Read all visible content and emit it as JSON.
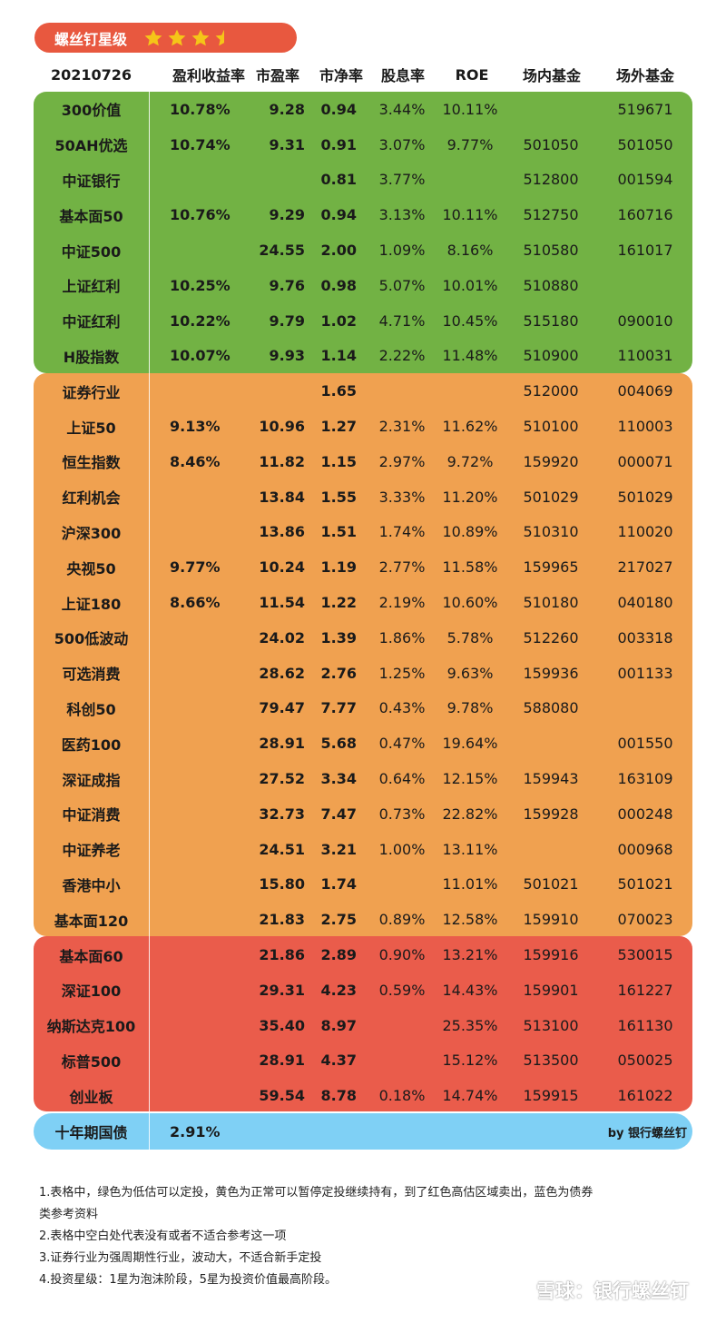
{
  "badge": {
    "title": "螺丝钉星级",
    "star_rating": 3.5,
    "star_color": "#f5c518"
  },
  "header": {
    "date": "20210726",
    "columns": [
      "盈利收益率",
      "市盈率",
      "市净率",
      "股息率",
      "ROE",
      "场内基金",
      "场外基金"
    ]
  },
  "colors": {
    "green": "#72b244",
    "orange": "#f0a150",
    "red": "#ea5c4b",
    "blue": "#7fd0f5",
    "badge": "#e8583f"
  },
  "groups": {
    "green": [
      {
        "name": "300价值",
        "ey": "10.78%",
        "pe": "9.28",
        "pb": "0.94",
        "dy": "3.44%",
        "roe": "10.11%",
        "inside": "",
        "outside": "519671"
      },
      {
        "name": "50AH优选",
        "ey": "10.74%",
        "pe": "9.31",
        "pb": "0.91",
        "dy": "3.07%",
        "roe": "9.77%",
        "inside": "501050",
        "outside": "501050"
      },
      {
        "name": "中证银行",
        "ey": "",
        "pe": "",
        "pb": "0.81",
        "dy": "3.77%",
        "roe": "",
        "inside": "512800",
        "outside": "001594"
      },
      {
        "name": "基本面50",
        "ey": "10.76%",
        "pe": "9.29",
        "pb": "0.94",
        "dy": "3.13%",
        "roe": "10.11%",
        "inside": "512750",
        "outside": "160716"
      },
      {
        "name": "中证500",
        "ey": "",
        "pe": "24.55",
        "pb": "2.00",
        "dy": "1.09%",
        "roe": "8.16%",
        "inside": "510580",
        "outside": "161017"
      },
      {
        "name": "上证红利",
        "ey": "10.25%",
        "pe": "9.76",
        "pb": "0.98",
        "dy": "5.07%",
        "roe": "10.01%",
        "inside": "510880",
        "outside": ""
      },
      {
        "name": "中证红利",
        "ey": "10.22%",
        "pe": "9.79",
        "pb": "1.02",
        "dy": "4.71%",
        "roe": "10.45%",
        "inside": "515180",
        "outside": "090010"
      },
      {
        "name": "H股指数",
        "ey": "10.07%",
        "pe": "9.93",
        "pb": "1.14",
        "dy": "2.22%",
        "roe": "11.48%",
        "inside": "510900",
        "outside": "110031"
      }
    ],
    "orange": [
      {
        "name": "证券行业",
        "ey": "",
        "pe": "",
        "pb": "1.65",
        "dy": "",
        "roe": "",
        "inside": "512000",
        "outside": "004069"
      },
      {
        "name": "上证50",
        "ey": "9.13%",
        "pe": "10.96",
        "pb": "1.27",
        "dy": "2.31%",
        "roe": "11.62%",
        "inside": "510100",
        "outside": "110003"
      },
      {
        "name": "恒生指数",
        "ey": "8.46%",
        "pe": "11.82",
        "pb": "1.15",
        "dy": "2.97%",
        "roe": "9.72%",
        "inside": "159920",
        "outside": "000071"
      },
      {
        "name": "红利机会",
        "ey": "",
        "pe": "13.84",
        "pb": "1.55",
        "dy": "3.33%",
        "roe": "11.20%",
        "inside": "501029",
        "outside": "501029"
      },
      {
        "name": "沪深300",
        "ey": "",
        "pe": "13.86",
        "pb": "1.51",
        "dy": "1.74%",
        "roe": "10.89%",
        "inside": "510310",
        "outside": "110020"
      },
      {
        "name": "央视50",
        "ey": "9.77%",
        "pe": "10.24",
        "pb": "1.19",
        "dy": "2.77%",
        "roe": "11.58%",
        "inside": "159965",
        "outside": "217027"
      },
      {
        "name": "上证180",
        "ey": "8.66%",
        "pe": "11.54",
        "pb": "1.22",
        "dy": "2.19%",
        "roe": "10.60%",
        "inside": "510180",
        "outside": "040180"
      },
      {
        "name": "500低波动",
        "ey": "",
        "pe": "24.02",
        "pb": "1.39",
        "dy": "1.86%",
        "roe": "5.78%",
        "inside": "512260",
        "outside": "003318"
      },
      {
        "name": "可选消费",
        "ey": "",
        "pe": "28.62",
        "pb": "2.76",
        "dy": "1.25%",
        "roe": "9.63%",
        "inside": "159936",
        "outside": "001133"
      },
      {
        "name": "科创50",
        "ey": "",
        "pe": "79.47",
        "pb": "7.77",
        "dy": "0.43%",
        "roe": "9.78%",
        "inside": "588080",
        "outside": ""
      },
      {
        "name": "医药100",
        "ey": "",
        "pe": "28.91",
        "pb": "5.68",
        "dy": "0.47%",
        "roe": "19.64%",
        "inside": "",
        "outside": "001550"
      },
      {
        "name": "深证成指",
        "ey": "",
        "pe": "27.52",
        "pb": "3.34",
        "dy": "0.64%",
        "roe": "12.15%",
        "inside": "159943",
        "outside": "163109"
      },
      {
        "name": "中证消费",
        "ey": "",
        "pe": "32.73",
        "pb": "7.47",
        "dy": "0.73%",
        "roe": "22.82%",
        "inside": "159928",
        "outside": "000248"
      },
      {
        "name": "中证养老",
        "ey": "",
        "pe": "24.51",
        "pb": "3.21",
        "dy": "1.00%",
        "roe": "13.11%",
        "inside": "",
        "outside": "000968"
      },
      {
        "name": "香港中小",
        "ey": "",
        "pe": "15.80",
        "pb": "1.74",
        "dy": "",
        "roe": "11.01%",
        "inside": "501021",
        "outside": "501021"
      },
      {
        "name": "基本面120",
        "ey": "",
        "pe": "21.83",
        "pb": "2.75",
        "dy": "0.89%",
        "roe": "12.58%",
        "inside": "159910",
        "outside": "070023"
      }
    ],
    "red": [
      {
        "name": "基本面60",
        "ey": "",
        "pe": "21.86",
        "pb": "2.89",
        "dy": "0.90%",
        "roe": "13.21%",
        "inside": "159916",
        "outside": "530015"
      },
      {
        "name": "深证100",
        "ey": "",
        "pe": "29.31",
        "pb": "4.23",
        "dy": "0.59%",
        "roe": "14.43%",
        "inside": "159901",
        "outside": "161227"
      },
      {
        "name": "纳斯达克100",
        "ey": "",
        "pe": "35.40",
        "pb": "8.97",
        "dy": "",
        "roe": "25.35%",
        "inside": "513100",
        "outside": "161130"
      },
      {
        "name": "标普500",
        "ey": "",
        "pe": "28.91",
        "pb": "4.37",
        "dy": "",
        "roe": "15.12%",
        "inside": "513500",
        "outside": "050025"
      },
      {
        "name": "创业板",
        "ey": "",
        "pe": "59.54",
        "pb": "8.78",
        "dy": "0.18%",
        "roe": "14.74%",
        "inside": "159915",
        "outside": "161022"
      }
    ]
  },
  "bond": {
    "name": "十年期国债",
    "ey": "2.91%",
    "by": "by 银行螺丝钉"
  },
  "notes": [
    "1.表格中，绿色为低估可以定投，黄色为正常可以暂停定投继续持有，到了红色高估区域卖出，蓝色为债券",
    "类参考资料",
    "2.表格中空白处代表没有或者不适合参考这一项",
    "3.证券行业为强周期性行业，波动大，不适合新手定投",
    "4.投资星级：1星为泡沫阶段，5星为投资价值最高阶段。"
  ],
  "watermark": {
    "text": "雪球：银行螺丝钉"
  }
}
